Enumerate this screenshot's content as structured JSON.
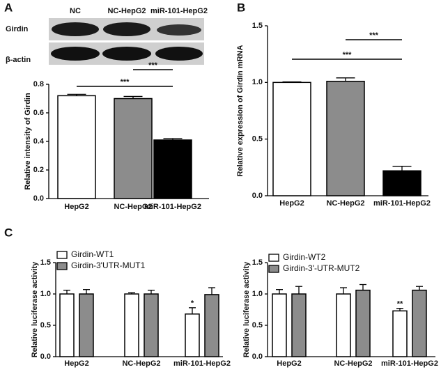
{
  "panel_labels": [
    "A",
    "B",
    "C"
  ],
  "blot": {
    "lanes": [
      "NC",
      "NC-HepG2",
      "miR-101-HepG2"
    ],
    "rows": [
      "Girdin",
      "β-actin"
    ]
  },
  "chart_data": [
    {
      "type": "bar",
      "ylabel": "Relative intensity of Girdin",
      "categories": [
        "HepG2",
        "NC-HepG2",
        "miR-101-HepG2"
      ],
      "values": [
        0.72,
        0.7,
        0.41
      ],
      "errors": [
        0.01,
        0.015,
        0.01
      ],
      "colors": [
        "#ffffff",
        "#8c8c8c",
        "#000000"
      ],
      "ylim": [
        0,
        0.8
      ],
      "yticks": [
        {
          "value": 0,
          "label": "0.0"
        },
        0.2,
        0.4,
        0.6,
        0.8
      ],
      "annotations": [
        "***",
        "***"
      ]
    },
    {
      "type": "bar",
      "ylabel": "Relative expression of Girdin mRNA",
      "categories": [
        "HepG2",
        "NC-HepG2",
        "miR-101-HepG2"
      ],
      "values": [
        1.0,
        1.01,
        0.22
      ],
      "errors": [
        0.005,
        0.03,
        0.04
      ],
      "colors": [
        "#ffffff",
        "#8c8c8c",
        "#000000"
      ],
      "ylim": [
        0,
        1.5
      ],
      "yticks": [
        {
          "value": 0,
          "label": "0.0"
        },
        0.5,
        {
          "value": 1,
          "label": "1.0"
        },
        1.5
      ],
      "annotations": [
        "***",
        "***"
      ]
    },
    {
      "type": "grouped_bar",
      "ylabel": "Relative luciferase activity",
      "categories": [
        "HepG2",
        "NC-HepG2",
        "miR-101-HepG2"
      ],
      "series": [
        {
          "name": "Girdin-WT1",
          "color": "#ffffff",
          "values": [
            1.0,
            1.0,
            0.68
          ],
          "errors": [
            0.06,
            0.02,
            0.1
          ]
        },
        {
          "name": "Girdin-3'UTR-MUT1",
          "color": "#8c8c8c",
          "values": [
            1.0,
            1.0,
            0.99
          ],
          "errors": [
            0.07,
            0.06,
            0.11
          ]
        }
      ],
      "ylim": [
        0,
        1.5
      ],
      "yticks": [
        {
          "value": 0,
          "label": "0.0"
        },
        0.5,
        {
          "value": 1,
          "label": "1.0"
        },
        1.5
      ],
      "annotations": [
        "*"
      ]
    },
    {
      "type": "grouped_bar",
      "ylabel": "Relative luciferase activity",
      "categories": [
        "HepG2",
        "NC-HepG2",
        "miR-101-HepG2"
      ],
      "series": [
        {
          "name": "Girdin-WT2",
          "color": "#ffffff",
          "values": [
            1.0,
            1.0,
            0.73
          ],
          "errors": [
            0.07,
            0.1,
            0.04
          ]
        },
        {
          "name": "Girdin-3'-UTR-MUT2",
          "color": "#8c8c8c",
          "values": [
            1.0,
            1.06,
            1.06
          ],
          "errors": [
            0.12,
            0.09,
            0.06
          ]
        }
      ],
      "ylim": [
        0,
        1.5
      ],
      "yticks": [
        {
          "value": 0,
          "label": "0.0"
        },
        0.5,
        {
          "value": 1,
          "label": "1.0"
        },
        1.5
      ],
      "annotations": [
        "**"
      ]
    }
  ]
}
